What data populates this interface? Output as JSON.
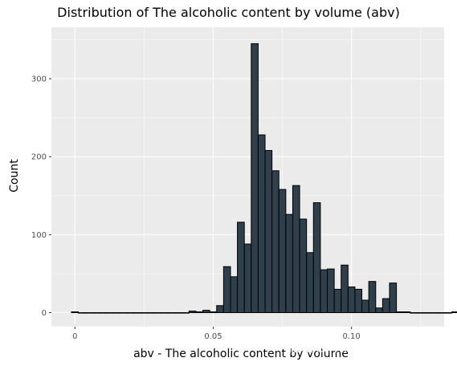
{
  "chart_data": {
    "type": "bar",
    "title": "Distribution of The alcoholic content by volume (abv)",
    "xlabel": "abv - The alcoholic content by volume",
    "ylabel": "Count",
    "xlim": [
      -0.0085,
      0.1335
    ],
    "ylim": [
      -18,
      366
    ],
    "x_ticks": [
      0,
      0.05,
      0.1
    ],
    "x_tick_labels": [
      "0",
      "0.05",
      "0.10"
    ],
    "y_ticks": [
      0,
      100,
      200,
      300
    ],
    "y_tick_labels": [
      "0",
      "100",
      "200",
      "300"
    ],
    "bin_width": 0.0025,
    "bin_start": -0.00125,
    "values": [
      1,
      0,
      0,
      0,
      0,
      0,
      0,
      0,
      0,
      0,
      0,
      0,
      0,
      0,
      0,
      0,
      0,
      2,
      1,
      3,
      1,
      9,
      59,
      46,
      116,
      88,
      345,
      228,
      208,
      182,
      158,
      126,
      163,
      120,
      77,
      141,
      55,
      56,
      30,
      61,
      33,
      30,
      16,
      40,
      6,
      18,
      38,
      1,
      1,
      0,
      0,
      0,
      0,
      0,
      0,
      1,
      0,
      1,
      1
    ],
    "bar_color": "#2f3f4c",
    "bar_edge_color": "#000000",
    "panel_color": "#ebebeb",
    "grid": true,
    "legend": "none"
  },
  "watermark": "掘金技术社区 @ 布客飞龙"
}
